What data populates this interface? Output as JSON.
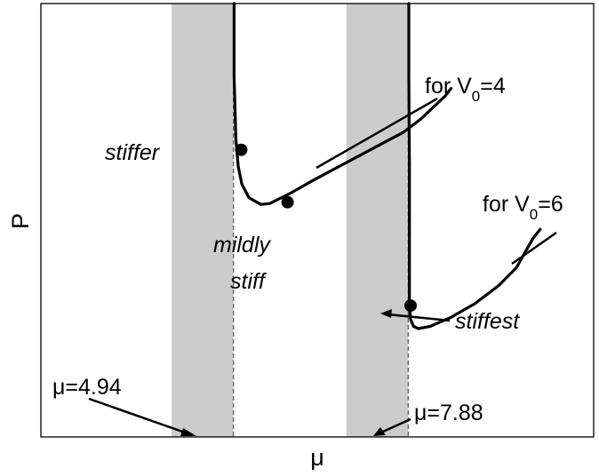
{
  "chart_data": {
    "type": "line",
    "title": "",
    "xlabel": "μ",
    "ylabel": "P",
    "grid": false,
    "shaded_bands": [
      {
        "x_start": 3.9,
        "x_end": 4.94
      },
      {
        "x_start": 6.84,
        "x_end": 7.88
      }
    ],
    "reference_lines": [
      {
        "x": 4.94,
        "label": "μ=4.94"
      },
      {
        "x": 7.88,
        "label": "μ=7.88"
      }
    ],
    "series": [
      {
        "name": "for V0=4",
        "name_parts": {
          "prefix": "for V",
          "subscript": "0",
          "suffix": "=4"
        },
        "points": [
          [
            4.95,
            9.6
          ],
          [
            4.95,
            8.0
          ],
          [
            4.96,
            7.6
          ],
          [
            4.98,
            6.6
          ],
          [
            5.02,
            6.0
          ],
          [
            5.08,
            5.6
          ],
          [
            5.2,
            5.3
          ],
          [
            5.4,
            5.15
          ],
          [
            5.55,
            5.17
          ],
          [
            5.9,
            5.4
          ],
          [
            6.3,
            5.7
          ],
          [
            6.8,
            6.05
          ],
          [
            7.3,
            6.4
          ],
          [
            7.8,
            6.75
          ],
          [
            8.1,
            7.05
          ],
          [
            8.5,
            7.55
          ],
          [
            8.6,
            7.72
          ]
        ]
      },
      {
        "name": "for V0=6",
        "name_parts": {
          "prefix": "for V",
          "subscript": "0",
          "suffix": "=6"
        },
        "points": [
          [
            7.89,
            9.6
          ],
          [
            7.89,
            8.0
          ],
          [
            7.9,
            6.0
          ],
          [
            7.9,
            4.0
          ],
          [
            7.9,
            2.9
          ],
          [
            7.92,
            2.6
          ],
          [
            7.97,
            2.45
          ],
          [
            8.05,
            2.4
          ],
          [
            8.25,
            2.45
          ],
          [
            8.6,
            2.65
          ],
          [
            9.0,
            2.95
          ],
          [
            9.4,
            3.35
          ],
          [
            9.7,
            3.75
          ],
          [
            9.98,
            4.4
          ],
          [
            10.1,
            4.6
          ]
        ]
      }
    ],
    "markers": [
      {
        "x": 5.07,
        "y": 6.36,
        "label": "stiffer"
      },
      {
        "x": 5.85,
        "y": 5.2,
        "label": "mildly stiff"
      },
      {
        "x": 7.92,
        "y": 2.91,
        "label": "stiffest"
      }
    ],
    "axis_range": {
      "xlim": [
        1.7,
        11.0
      ],
      "ylim": [
        0,
        9.6
      ]
    }
  },
  "labels": {
    "x_axis": "μ",
    "y_axis": "P",
    "stiffer": "stiffer",
    "mildly_1": "mildly",
    "mildly_2": "stiff",
    "stiffest": "stiffest",
    "ref_left": "μ=4.94",
    "ref_right": "μ=7.88",
    "v0_4_prefix": "for V",
    "v0_4_sub": "0",
    "v0_4_suffix": "=4",
    "v0_6_prefix": "for V",
    "v0_6_sub": "0",
    "v0_6_suffix": "=6"
  },
  "colors": {
    "band": "#cccccc",
    "curve": "#000000",
    "frame": "#000000"
  }
}
